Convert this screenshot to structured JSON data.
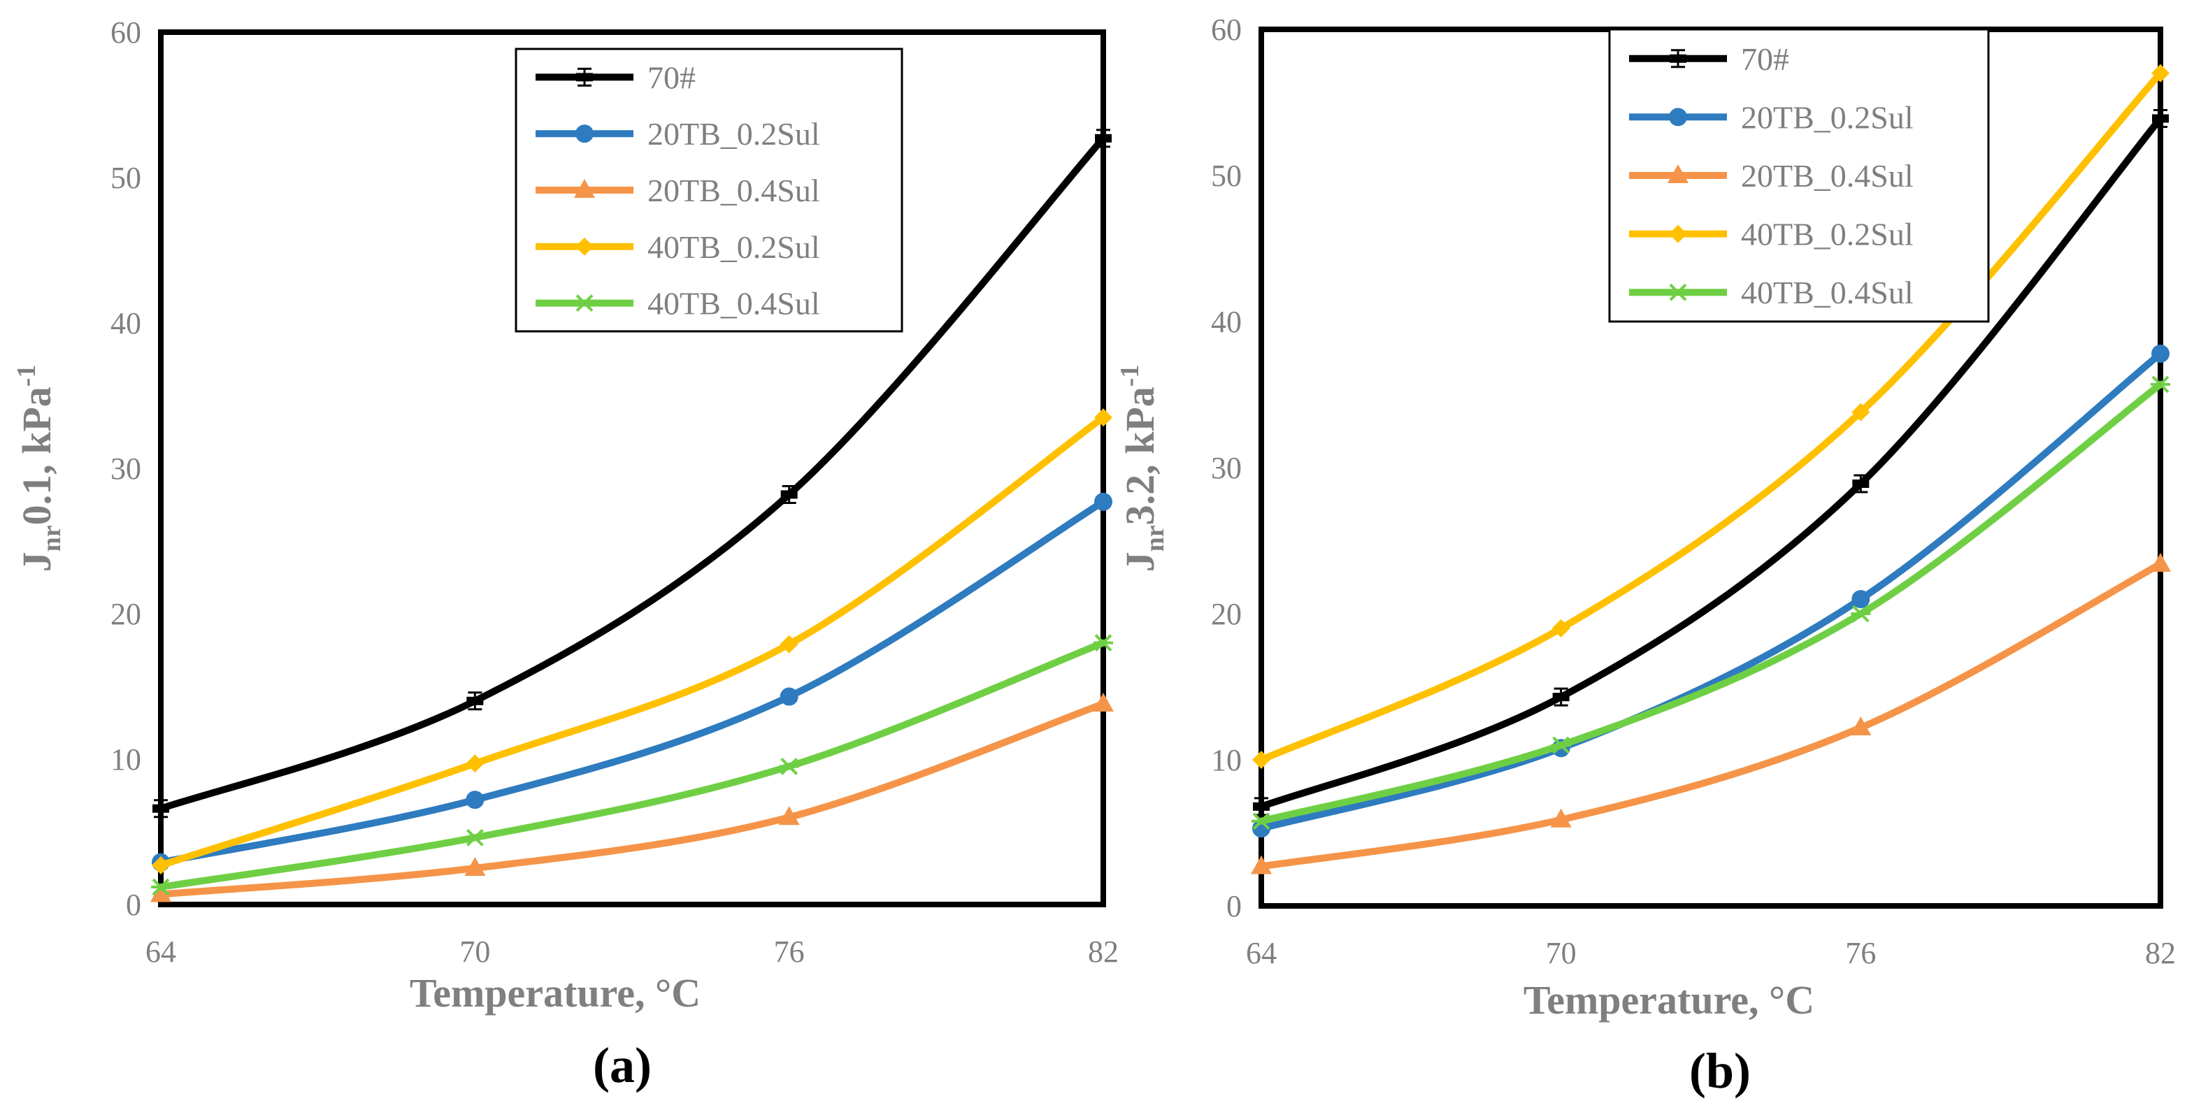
{
  "chart_data": [
    {
      "type": "line",
      "panel_label": "(a)",
      "xlabel": "Temperature, °C",
      "ylabel": {
        "main": "J",
        "sub": "nr",
        "rest": "0.1, kPa",
        "sup": "-1"
      },
      "categories": [
        "64",
        "70",
        "76",
        "82"
      ],
      "ylim": [
        0,
        60
      ],
      "yticks": [
        0,
        10,
        20,
        30,
        40,
        50,
        60
      ],
      "grid": false,
      "legend_position": "top-center",
      "series": [
        {
          "name": "70#",
          "color": "#000000",
          "marker": "bar",
          "values": [
            6.6,
            14.0,
            28.2,
            52.7
          ]
        },
        {
          "name": "20TB_0.2Sul",
          "color": "#2e7bbf",
          "marker": "circle",
          "values": [
            2.9,
            7.2,
            14.3,
            27.7
          ]
        },
        {
          "name": "20TB_0.4Sul",
          "color": "#f59448",
          "marker": "triangle",
          "values": [
            0.7,
            2.5,
            6.0,
            13.8
          ]
        },
        {
          "name": "40TB_0.2Sul",
          "color": "#ffc000",
          "marker": "diamond",
          "values": [
            2.7,
            9.7,
            17.9,
            33.5
          ]
        },
        {
          "name": "40TB_0.4Sul",
          "color": "#6fcf44",
          "marker": "star",
          "values": [
            1.2,
            4.6,
            9.5,
            18.0
          ]
        }
      ]
    },
    {
      "type": "line",
      "panel_label": "(b)",
      "xlabel": "Temperature, °C",
      "ylabel": {
        "main": "J",
        "sub": "nr",
        "rest": "3.2, kPa",
        "sup": "-1"
      },
      "categories": [
        "64",
        "70",
        "76",
        "82"
      ],
      "ylim": [
        0,
        60
      ],
      "yticks": [
        0,
        10,
        20,
        30,
        40,
        50,
        60
      ],
      "grid": false,
      "legend_position": "top-center",
      "series": [
        {
          "name": "70#",
          "color": "#000000",
          "marker": "bar",
          "values": [
            6.8,
            14.3,
            28.9,
            53.9
          ]
        },
        {
          "name": "20TB_0.2Sul",
          "color": "#2e7bbf",
          "marker": "circle",
          "values": [
            5.3,
            10.8,
            21.0,
            37.8
          ]
        },
        {
          "name": "20TB_0.4Sul",
          "color": "#f59448",
          "marker": "triangle",
          "values": [
            2.7,
            5.9,
            12.2,
            23.4
          ]
        },
        {
          "name": "40TB_0.2Sul",
          "color": "#ffc000",
          "marker": "diamond",
          "values": [
            10.0,
            19.0,
            33.8,
            57.0
          ]
        },
        {
          "name": "40TB_0.4Sul",
          "color": "#6fcf44",
          "marker": "star",
          "values": [
            5.8,
            11.0,
            20.0,
            35.7
          ]
        }
      ]
    }
  ]
}
